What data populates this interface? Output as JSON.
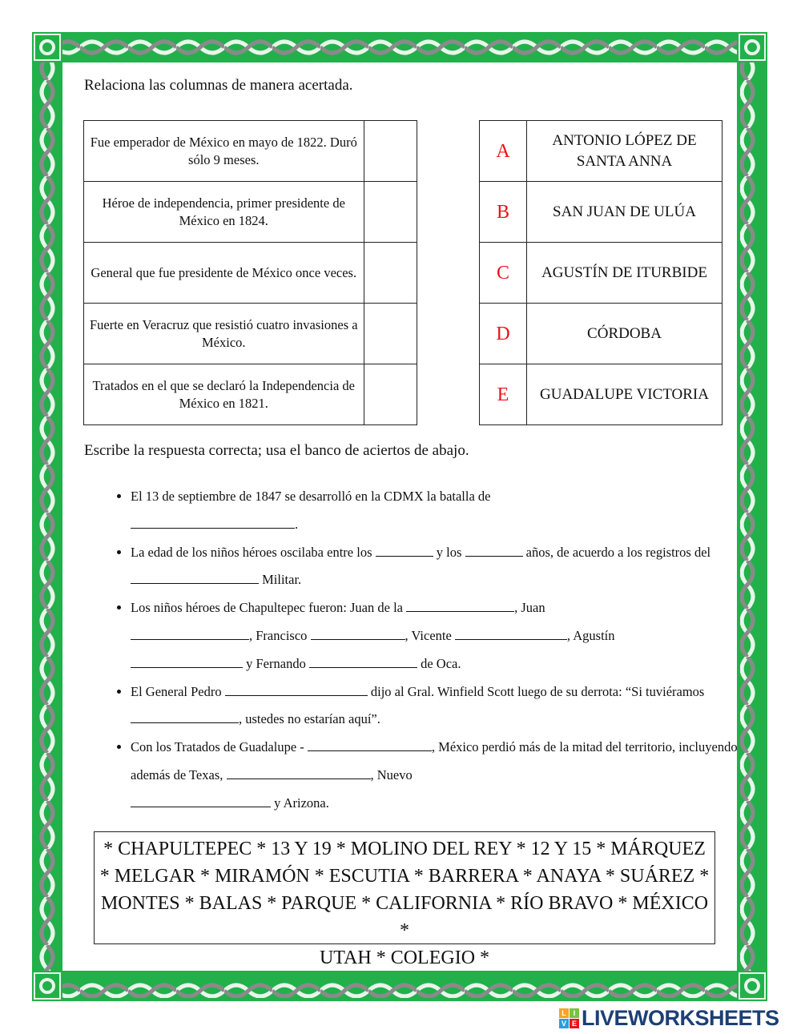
{
  "colors": {
    "border_green": "#22b04b",
    "border_gray": "#8a8a8a",
    "letter_red": "#e8141b",
    "logo_blue": "#1c3f75"
  },
  "section1": {
    "instruction": "Relaciona las columnas de manera acertada.",
    "questions": [
      "Fue emperador de México en mayo de 1822. Duró sólo 9 meses.",
      "Héroe de independencia, primer presidente de México en 1824.",
      "General que fue presidente de México once veces.",
      "Fuerte en Veracruz que resistió cuatro invasiones a México.",
      "Tratados en el que se declaró la Independencia de México en 1821."
    ],
    "options": [
      {
        "letter": "A",
        "text": "ANTONIO LÓPEZ DE SANTA ANNA"
      },
      {
        "letter": "B",
        "text": "SAN JUAN DE ULÚA"
      },
      {
        "letter": "C",
        "text": "AGUSTÍN DE ITURBIDE"
      },
      {
        "letter": "D",
        "text": "CÓRDOBA"
      },
      {
        "letter": "E",
        "text": "GUADALUPE VICTORIA"
      }
    ]
  },
  "section2": {
    "instruction": "Escribe la respuesta correcta; usa el banco de aciertos de abajo.",
    "items": [
      [
        "El 13 de septiembre de 1847 se desarrolló en la CDMX la batalla de",
        ". "
      ],
      [
        "La edad de los niños héroes oscilaba entre los",
        "y los",
        "años, de acuerdo a los registros del",
        "Militar."
      ],
      [
        "Los niños héroes de Chapultepec fueron: Juan de la",
        ", Juan",
        ", Francisco",
        ", Vicente",
        ", Agustín",
        "y Fernando",
        "de Oca."
      ],
      [
        "El General Pedro",
        "dijo al Gral. Winfield Scott luego de su derrota: “Si tuviéramos",
        ", ustedes no estarían aquí”."
      ],
      [
        "Con los Tratados de Guadalupe -",
        ", México perdió más de la mitad del territorio, incluyendo además de Texas,",
        ", Nuevo",
        "y Arizona."
      ]
    ]
  },
  "word_bank": [
    "* CHAPULTEPEC * 13 Y 19 * MOLINO DEL REY * 12 Y 15 * MÁRQUEZ",
    "* MELGAR * MIRAMÓN * ESCUTIA * BARRERA * ANAYA * SUÁREZ *",
    "MONTES * BALAS * PARQUE * CALIFORNIA * RÍO BRAVO * MÉXICO *",
    "UTAH * COLEGIO *"
  ],
  "logo": {
    "text": "LIVEWORKSHEETS",
    "mark": [
      "L",
      "I",
      "V",
      "E"
    ],
    "mark_colors": [
      "#f5a623",
      "#7ac143",
      "#2d9cdb",
      "#e8141b"
    ]
  }
}
